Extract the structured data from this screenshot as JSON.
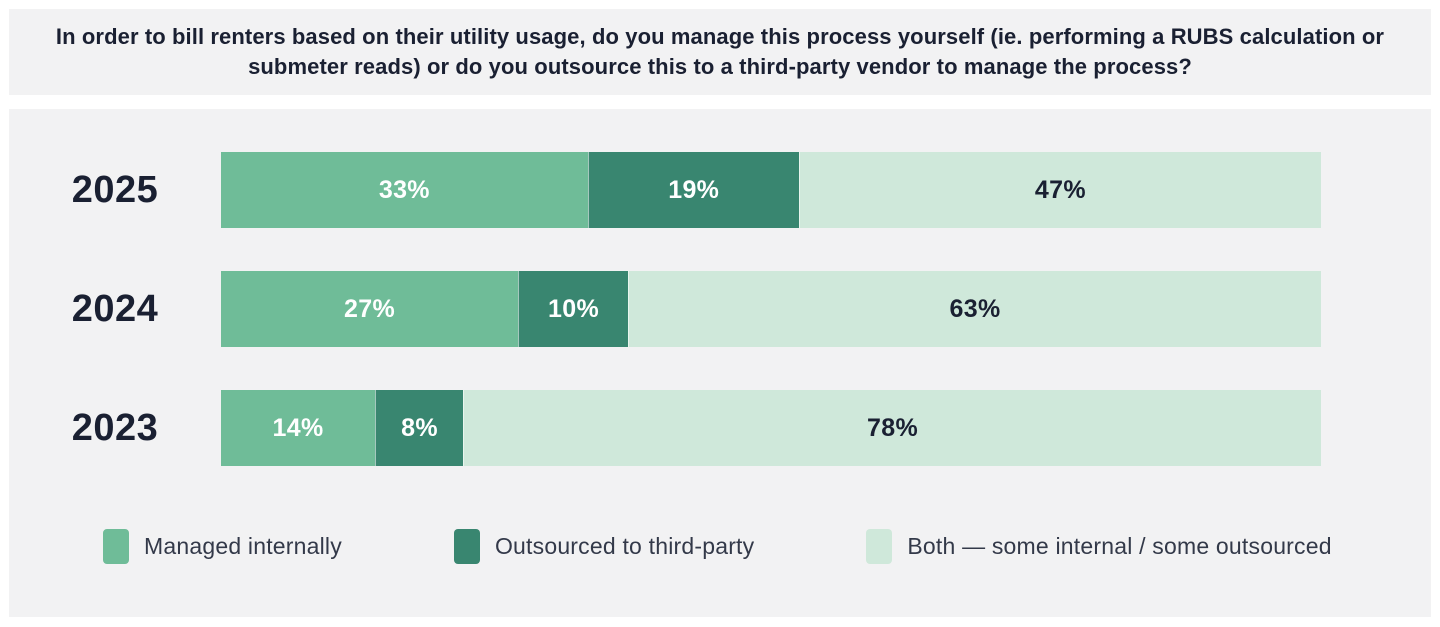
{
  "title": "In order to bill renters based on their utility usage, do you manage this process yourself (ie. performing a RUBS calculation or submeter reads) or do you outsource this to a third-party vendor to manage the process?",
  "colors": {
    "managed": "#6fbc98",
    "outsourced": "#398670",
    "both": "#cfe8da",
    "band_background": "#f2f2f3",
    "dark_text": "#1a2032",
    "legend_text": "#333949",
    "white_label": "#ffffff"
  },
  "chart_data": {
    "type": "bar",
    "orientation": "horizontal",
    "stacked": true,
    "value_format": "percent",
    "legend_position": "bottom",
    "grid": false,
    "categories": [
      "2025",
      "2024",
      "2023"
    ],
    "series": [
      {
        "name": "Managed internally",
        "color_key": "managed",
        "label_color": "#ffffff",
        "values": [
          33,
          27,
          14
        ]
      },
      {
        "name": "Outsourced to third-party",
        "color_key": "outsourced",
        "label_color": "#ffffff",
        "values": [
          19,
          10,
          8
        ]
      },
      {
        "name": "Both — some internal / some outsourced",
        "color_key": "both",
        "label_color": "#1a2032",
        "values": [
          47,
          63,
          78
        ]
      }
    ]
  }
}
